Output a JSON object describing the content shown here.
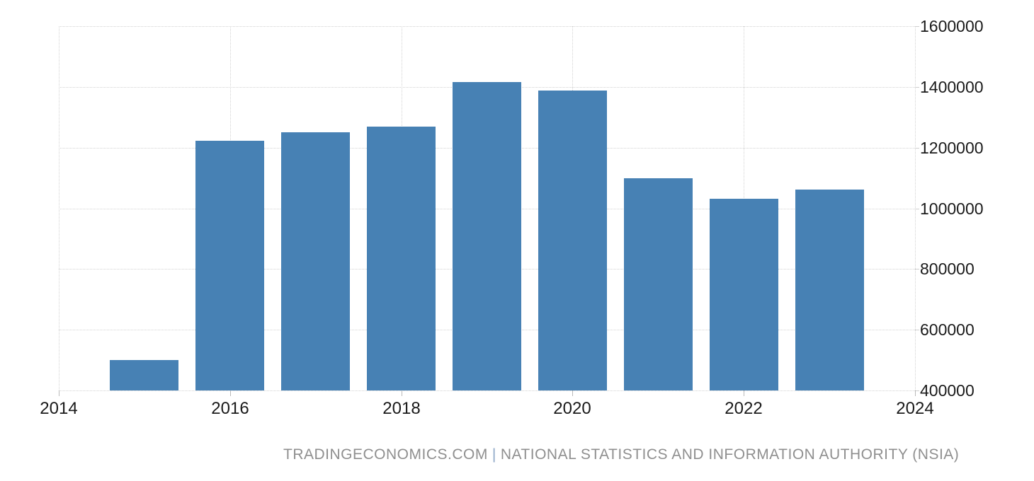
{
  "chart_data": {
    "type": "bar",
    "x": [
      2015,
      2016,
      2017,
      2018,
      2019,
      2020,
      2021,
      2022,
      2023
    ],
    "values": [
      500000,
      1223000,
      1250000,
      1269000,
      1416000,
      1388000,
      1099000,
      1031000,
      1062000
    ],
    "title": "",
    "xlabel": "",
    "ylabel": "",
    "xlim": [
      2014,
      2024
    ],
    "ylim": [
      400000,
      1600000
    ],
    "x_ticks": [
      2014,
      2016,
      2018,
      2020,
      2022,
      2024
    ],
    "y_ticks": [
      400000,
      600000,
      800000,
      1000000,
      1200000,
      1400000,
      1600000
    ],
    "grid": "dotted",
    "legend": "none",
    "y_axis_side": "right",
    "bar_color": "#4781b4"
  },
  "colors": {
    "background": "#ffffff",
    "gridline": "#d2d2d2",
    "axis_text": "#1a1a1a",
    "footer_text": "#8f8f8f",
    "footer_separator": "#8ca6c6"
  },
  "footer": {
    "source": "TRADINGECONOMICS.COM",
    "separator": "|",
    "provider": "NATIONAL STATISTICS AND INFORMATION AUTHORITY (NSIA)"
  }
}
